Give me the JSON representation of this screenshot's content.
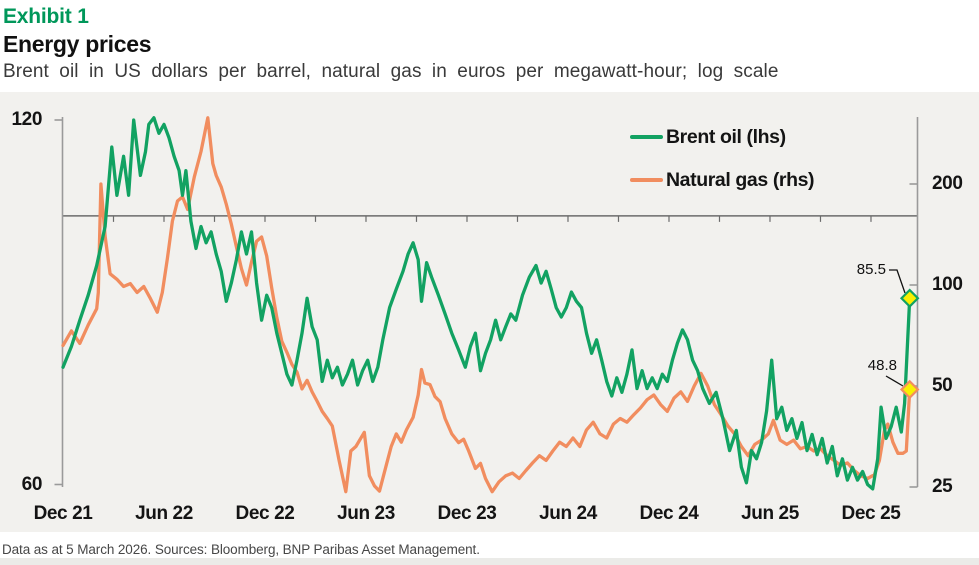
{
  "header": {
    "exhibit_label": "Exhibit 1",
    "title": "Energy prices",
    "subtitle": "Brent oil in US dollars per barrel, natural gas in euros per megawatt-hour; log scale"
  },
  "footer": {
    "note": "Data as at 5 March 2026. Sources: Bloomberg, BNP Paribas Asset Management."
  },
  "legend": [
    {
      "label": "Brent oil (lhs)",
      "color": "#12a262"
    },
    {
      "label": "Natural gas (rhs)",
      "color": "#f18d5f"
    }
  ],
  "colors": {
    "brent_green": "#12a262",
    "gas_orange": "#f18d5f",
    "exhibit_green": "#00975a",
    "marker_yellow": "#f9ef02",
    "plot_background": "#f2f1ee",
    "axis_gray": "#9a9a9a",
    "reference_line_gray": "#6b6b6b"
  },
  "chart_data": {
    "type": "line",
    "title": "Energy prices",
    "subtitle": "Brent oil in US dollars per barrel, natural gas in euros per megawatt-hour; log scale",
    "log_scale": true,
    "x_unit": "months_since_Dec_2021",
    "x_range_months": [
      0,
      50.8
    ],
    "x_tick_labels": [
      "Dec 21",
      "Jun 22",
      "Dec 22",
      "Jun 23",
      "Dec 23",
      "Jun 24",
      "Dec 24",
      "Jun 25",
      "Dec 25"
    ],
    "x_tick_months": [
      0,
      6,
      12,
      18,
      24,
      30,
      36,
      42,
      48
    ],
    "left_axis": {
      "ticks": [
        120,
        60
      ],
      "unit": "USD per barrel",
      "scale": "log"
    },
    "right_axis": {
      "ticks": [
        200,
        100,
        50,
        25
      ],
      "unit": "EUR per MWh",
      "scale": "log"
    },
    "reference_line_lhs": 100,
    "legend_position": "top-right",
    "annotations": {
      "brent_end": "85.5",
      "gas_end": "48.8"
    },
    "series": [
      {
        "name": "Brent oil (lhs)",
        "axis": "left",
        "color": "#12a262",
        "end_value": 85.5,
        "points": [
          [
            0,
            75
          ],
          [
            0.5,
            78
          ],
          [
            1,
            82
          ],
          [
            1.5,
            86
          ],
          [
            2,
            91
          ],
          [
            2.5,
            98
          ],
          [
            2.9,
            114
          ],
          [
            3.2,
            104
          ],
          [
            3.6,
            112
          ],
          [
            3.9,
            104
          ],
          [
            4.2,
            120
          ],
          [
            4.6,
            108
          ],
          [
            4.9,
            113
          ],
          [
            5.1,
            119
          ],
          [
            5.4,
            120.5
          ],
          [
            5.7,
            117
          ],
          [
            6,
            119
          ],
          [
            6.3,
            116
          ],
          [
            6.6,
            112
          ],
          [
            6.9,
            109
          ],
          [
            7.1,
            104
          ],
          [
            7.3,
            109
          ],
          [
            7.6,
            99
          ],
          [
            7.9,
            94
          ],
          [
            8.2,
            98
          ],
          [
            8.5,
            95
          ],
          [
            8.8,
            97
          ],
          [
            9.1,
            93
          ],
          [
            9.4,
            90
          ],
          [
            9.7,
            85
          ],
          [
            10,
            88
          ],
          [
            10.3,
            92
          ],
          [
            10.6,
            97
          ],
          [
            10.9,
            93
          ],
          [
            11.2,
            97
          ],
          [
            11.5,
            88
          ],
          [
            11.8,
            82
          ],
          [
            12.1,
            86
          ],
          [
            12.4,
            84
          ],
          [
            12.7,
            80
          ],
          [
            13,
            77
          ],
          [
            13.3,
            74
          ],
          [
            13.6,
            72.5
          ],
          [
            13.9,
            76
          ],
          [
            14.2,
            80
          ],
          [
            14.5,
            85.5
          ],
          [
            14.8,
            81
          ],
          [
            15.1,
            79
          ],
          [
            15.4,
            73
          ],
          [
            15.7,
            76
          ],
          [
            16,
            73.5
          ],
          [
            16.3,
            75
          ],
          [
            16.6,
            72.5
          ],
          [
            16.9,
            74
          ],
          [
            17.2,
            76
          ],
          [
            17.5,
            72.5
          ],
          [
            17.8,
            74.5
          ],
          [
            18.1,
            76
          ],
          [
            18.4,
            73
          ],
          [
            18.7,
            75
          ],
          [
            19,
            79
          ],
          [
            19.4,
            84
          ],
          [
            19.8,
            87
          ],
          [
            20.2,
            90
          ],
          [
            20.5,
            93
          ],
          [
            20.8,
            95
          ],
          [
            21.1,
            92
          ],
          [
            21.3,
            85
          ],
          [
            21.6,
            91.5
          ],
          [
            21.9,
            89
          ],
          [
            22.3,
            86
          ],
          [
            22.7,
            83
          ],
          [
            23.1,
            80
          ],
          [
            23.5,
            77.5
          ],
          [
            23.9,
            75
          ],
          [
            24.2,
            78
          ],
          [
            24.5,
            80
          ],
          [
            24.8,
            74.5
          ],
          [
            25.1,
            77
          ],
          [
            25.4,
            79
          ],
          [
            25.7,
            82
          ],
          [
            26,
            79
          ],
          [
            26.3,
            81
          ],
          [
            26.6,
            83
          ],
          [
            26.9,
            82
          ],
          [
            27.3,
            86
          ],
          [
            27.7,
            89
          ],
          [
            28.1,
            91
          ],
          [
            28.4,
            88
          ],
          [
            28.7,
            90
          ],
          [
            29,
            87
          ],
          [
            29.3,
            84
          ],
          [
            29.6,
            82.5
          ],
          [
            29.9,
            84
          ],
          [
            30.2,
            86.5
          ],
          [
            30.5,
            85
          ],
          [
            30.8,
            84
          ],
          [
            31.1,
            80
          ],
          [
            31.4,
            77
          ],
          [
            31.7,
            79
          ],
          [
            32,
            76
          ],
          [
            32.3,
            73
          ],
          [
            32.6,
            71
          ],
          [
            32.9,
            73.5
          ],
          [
            33.2,
            71.5
          ],
          [
            33.5,
            74
          ],
          [
            33.8,
            77.5
          ],
          [
            34.1,
            72
          ],
          [
            34.4,
            74.5
          ],
          [
            34.7,
            72
          ],
          [
            35,
            73.5
          ],
          [
            35.3,
            72
          ],
          [
            35.6,
            74
          ],
          [
            35.9,
            73
          ],
          [
            36.2,
            76
          ],
          [
            36.5,
            78.5
          ],
          [
            36.8,
            80.5
          ],
          [
            37.1,
            79
          ],
          [
            37.4,
            76
          ],
          [
            37.7,
            74.5
          ],
          [
            38,
            72
          ],
          [
            38.4,
            70
          ],
          [
            38.8,
            71.5
          ],
          [
            39.2,
            68
          ],
          [
            39.6,
            64
          ],
          [
            40,
            66.5
          ],
          [
            40.3,
            62
          ],
          [
            40.6,
            60.2
          ],
          [
            40.9,
            64
          ],
          [
            41.2,
            63
          ],
          [
            41.5,
            65
          ],
          [
            41.8,
            69
          ],
          [
            42.1,
            76
          ],
          [
            42.4,
            68
          ],
          [
            42.7,
            69.5
          ],
          [
            43,
            66.5
          ],
          [
            43.3,
            68
          ],
          [
            43.6,
            65.5
          ],
          [
            43.9,
            67.5
          ],
          [
            44.2,
            64
          ],
          [
            44.5,
            66
          ],
          [
            44.8,
            63.5
          ],
          [
            45.1,
            65.5
          ],
          [
            45.4,
            62.5
          ],
          [
            45.7,
            64.5
          ],
          [
            46,
            61
          ],
          [
            46.3,
            63
          ],
          [
            46.6,
            60.5
          ],
          [
            46.9,
            62
          ],
          [
            47.2,
            60.5
          ],
          [
            47.5,
            61.5
          ],
          [
            47.8,
            60
          ],
          [
            48.1,
            59.5
          ],
          [
            48.4,
            63
          ],
          [
            48.6,
            69.5
          ],
          [
            48.9,
            65.5
          ],
          [
            49.2,
            67
          ],
          [
            49.5,
            69.5
          ],
          [
            49.8,
            66.3
          ],
          [
            50,
            70
          ],
          [
            50.3,
            85.5
          ]
        ]
      },
      {
        "name": "Natural gas (rhs)",
        "axis": "right",
        "color": "#f18d5f",
        "end_value": 48.8,
        "points": [
          [
            0,
            66
          ],
          [
            0.5,
            73
          ],
          [
            1,
            67
          ],
          [
            1.5,
            76
          ],
          [
            2,
            85
          ],
          [
            2.1,
            95
          ],
          [
            2.25,
            200
          ],
          [
            2.5,
            140
          ],
          [
            2.8,
            108
          ],
          [
            3.2,
            104
          ],
          [
            3.6,
            99
          ],
          [
            4,
            101
          ],
          [
            4.4,
            95
          ],
          [
            4.8,
            99
          ],
          [
            5.2,
            91
          ],
          [
            5.6,
            83
          ],
          [
            5.9,
            95
          ],
          [
            6.2,
            120
          ],
          [
            6.5,
            155
          ],
          [
            6.8,
            178
          ],
          [
            7.1,
            183
          ],
          [
            7.4,
            168
          ],
          [
            7.8,
            210
          ],
          [
            8.2,
            250
          ],
          [
            8.6,
            315
          ],
          [
            8.9,
            230
          ],
          [
            9.1,
            212
          ],
          [
            9.4,
            196
          ],
          [
            9.7,
            174
          ],
          [
            10,
            152
          ],
          [
            10.3,
            130
          ],
          [
            10.6,
            112
          ],
          [
            10.9,
            100
          ],
          [
            11.2,
            117
          ],
          [
            11.5,
            135
          ],
          [
            11.8,
            139
          ],
          [
            12.1,
            122
          ],
          [
            12.4,
            98
          ],
          [
            12.7,
            80
          ],
          [
            13,
            68
          ],
          [
            13.3,
            63
          ],
          [
            13.6,
            58
          ],
          [
            13.9,
            55
          ],
          [
            14.2,
            49
          ],
          [
            14.5,
            52
          ],
          [
            14.8,
            48
          ],
          [
            15.1,
            45
          ],
          [
            15.4,
            42
          ],
          [
            15.7,
            40
          ],
          [
            16,
            38
          ],
          [
            16.4,
            30
          ],
          [
            16.8,
            24.2
          ],
          [
            17.1,
            32
          ],
          [
            17.4,
            33
          ],
          [
            17.9,
            36.4
          ],
          [
            18.2,
            27
          ],
          [
            18.5,
            25.2
          ],
          [
            18.8,
            24.3
          ],
          [
            19.2,
            29
          ],
          [
            19.5,
            33
          ],
          [
            19.8,
            36
          ],
          [
            20.1,
            34
          ],
          [
            20.4,
            37
          ],
          [
            20.8,
            40.3
          ],
          [
            21.1,
            47
          ],
          [
            21.3,
            56
          ],
          [
            21.5,
            51
          ],
          [
            21.8,
            50.5
          ],
          [
            22.1,
            46.5
          ],
          [
            22.4,
            44.9
          ],
          [
            22.7,
            40
          ],
          [
            23.1,
            36
          ],
          [
            23.5,
            33.9
          ],
          [
            23.8,
            34.7
          ],
          [
            24.1,
            32
          ],
          [
            24.5,
            28.4
          ],
          [
            24.8,
            29.4
          ],
          [
            25.1,
            26.5
          ],
          [
            25.5,
            24.2
          ],
          [
            25.9,
            25.9
          ],
          [
            26.3,
            27
          ],
          [
            26.7,
            27.5
          ],
          [
            27.1,
            26.5
          ],
          [
            27.5,
            28
          ],
          [
            27.9,
            29.5
          ],
          [
            28.3,
            31
          ],
          [
            28.7,
            30
          ],
          [
            29.1,
            32
          ],
          [
            29.5,
            34
          ],
          [
            29.9,
            33
          ],
          [
            30.3,
            35
          ],
          [
            30.7,
            33
          ],
          [
            31.1,
            37
          ],
          [
            31.5,
            39
          ],
          [
            31.9,
            36
          ],
          [
            32.3,
            35
          ],
          [
            32.7,
            38.5
          ],
          [
            33.1,
            40
          ],
          [
            33.5,
            39
          ],
          [
            33.9,
            41
          ],
          [
            34.3,
            43
          ],
          [
            34.7,
            45.5
          ],
          [
            35.1,
            47
          ],
          [
            35.5,
            44
          ],
          [
            35.9,
            42
          ],
          [
            36.3,
            46
          ],
          [
            36.7,
            48
          ],
          [
            37.1,
            45
          ],
          [
            37.5,
            50
          ],
          [
            37.9,
            54.5
          ],
          [
            38.3,
            50
          ],
          [
            38.7,
            44
          ],
          [
            39.1,
            41
          ],
          [
            39.5,
            38
          ],
          [
            39.9,
            36
          ],
          [
            40.3,
            33
          ],
          [
            40.7,
            31
          ],
          [
            41.1,
            33.5
          ],
          [
            41.5,
            34.5
          ],
          [
            41.9,
            36
          ],
          [
            42.2,
            39.5
          ],
          [
            42.6,
            34.5
          ],
          [
            43,
            33.5
          ],
          [
            43.4,
            34.5
          ],
          [
            43.8,
            32.5
          ],
          [
            44.2,
            33
          ],
          [
            44.6,
            32
          ],
          [
            45,
            32.5
          ],
          [
            45.4,
            31
          ],
          [
            45.8,
            30
          ],
          [
            46.2,
            29
          ],
          [
            46.6,
            29.5
          ],
          [
            47,
            28
          ],
          [
            47.4,
            27
          ],
          [
            47.8,
            26.5
          ],
          [
            48.2,
            27.2
          ],
          [
            48.5,
            30
          ],
          [
            48.8,
            37
          ],
          [
            49,
            38.5
          ],
          [
            49.3,
            34
          ],
          [
            49.6,
            31.5
          ],
          [
            49.9,
            31.5
          ],
          [
            50.1,
            32
          ],
          [
            50.3,
            48.8
          ]
        ]
      }
    ]
  }
}
